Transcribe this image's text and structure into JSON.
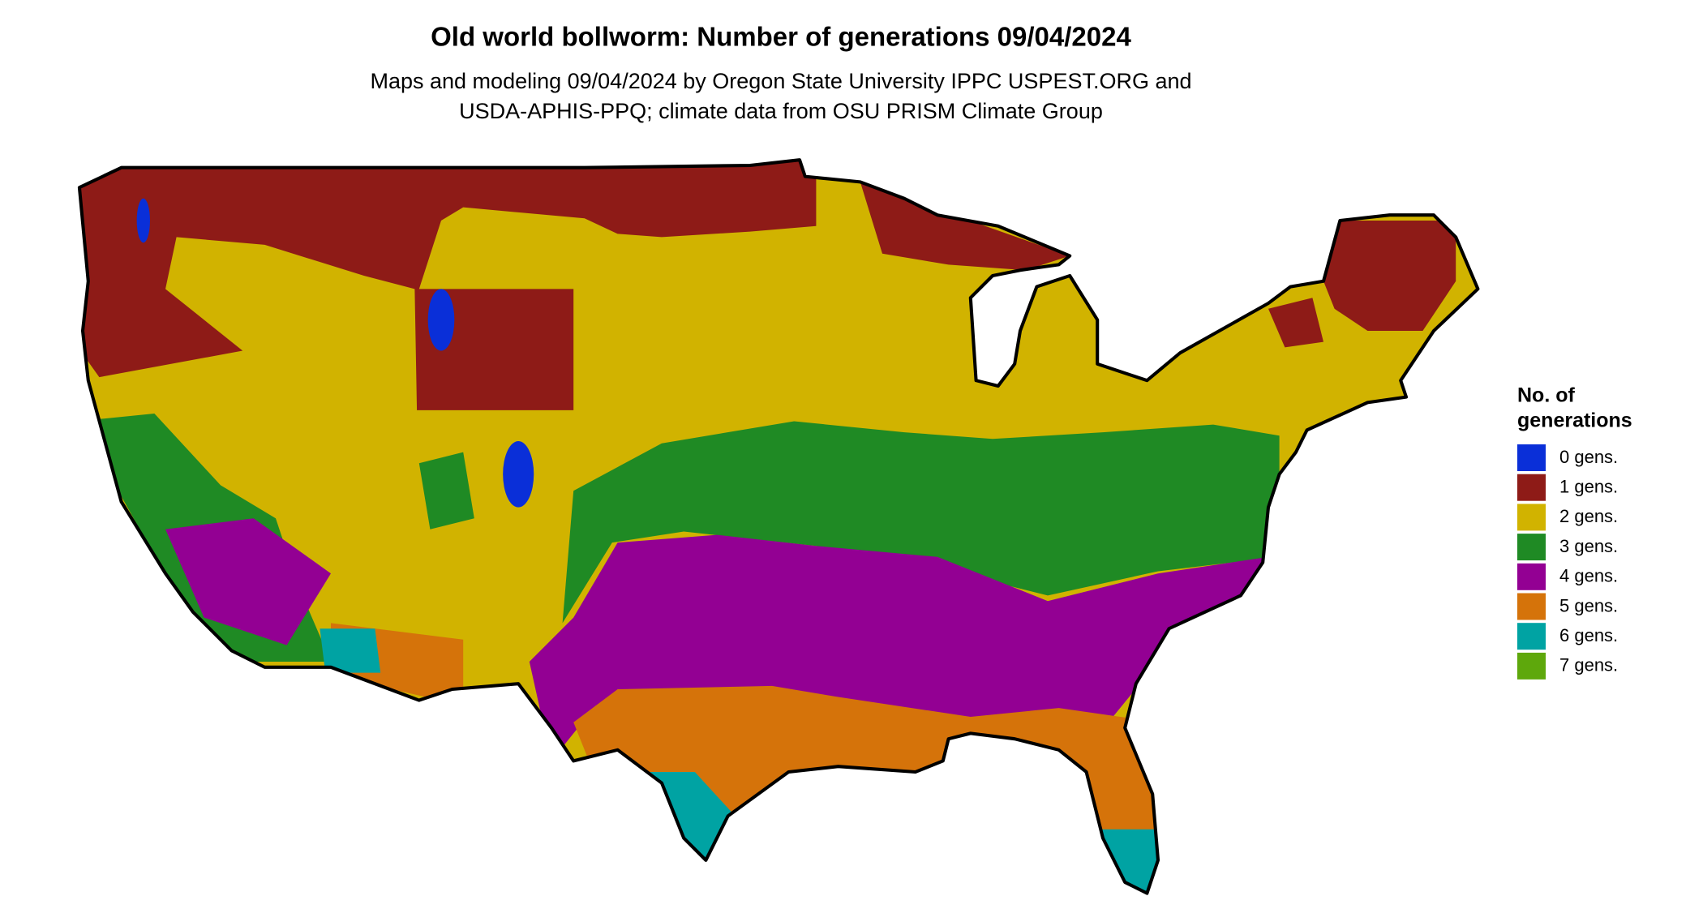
{
  "header": {
    "title": "Old world bollworm: Number of generations 09/04/2024",
    "subtitle_lines": [
      "Maps and modeling 09/04/2024 by Oregon State University IPPC USPEST.ORG and",
      "USDA-APHIS-PPQ; climate data from OSU PRISM Climate Group"
    ]
  },
  "legend": {
    "title_lines": [
      "No. of",
      "generations"
    ],
    "items": [
      {
        "label": "0 gens.",
        "color": "#0a2fd8"
      },
      {
        "label": "1 gens.",
        "color": "#8e1b17"
      },
      {
        "label": "2 gens.",
        "color": "#d1b300"
      },
      {
        "label": "3 gens.",
        "color": "#1f8a24"
      },
      {
        "label": "4 gens.",
        "color": "#930093"
      },
      {
        "label": "5 gens.",
        "color": "#d5730a"
      },
      {
        "label": "6 gens.",
        "color": "#00a3a3"
      },
      {
        "label": "7 gens.",
        "color": "#5ea80c"
      }
    ]
  }
}
